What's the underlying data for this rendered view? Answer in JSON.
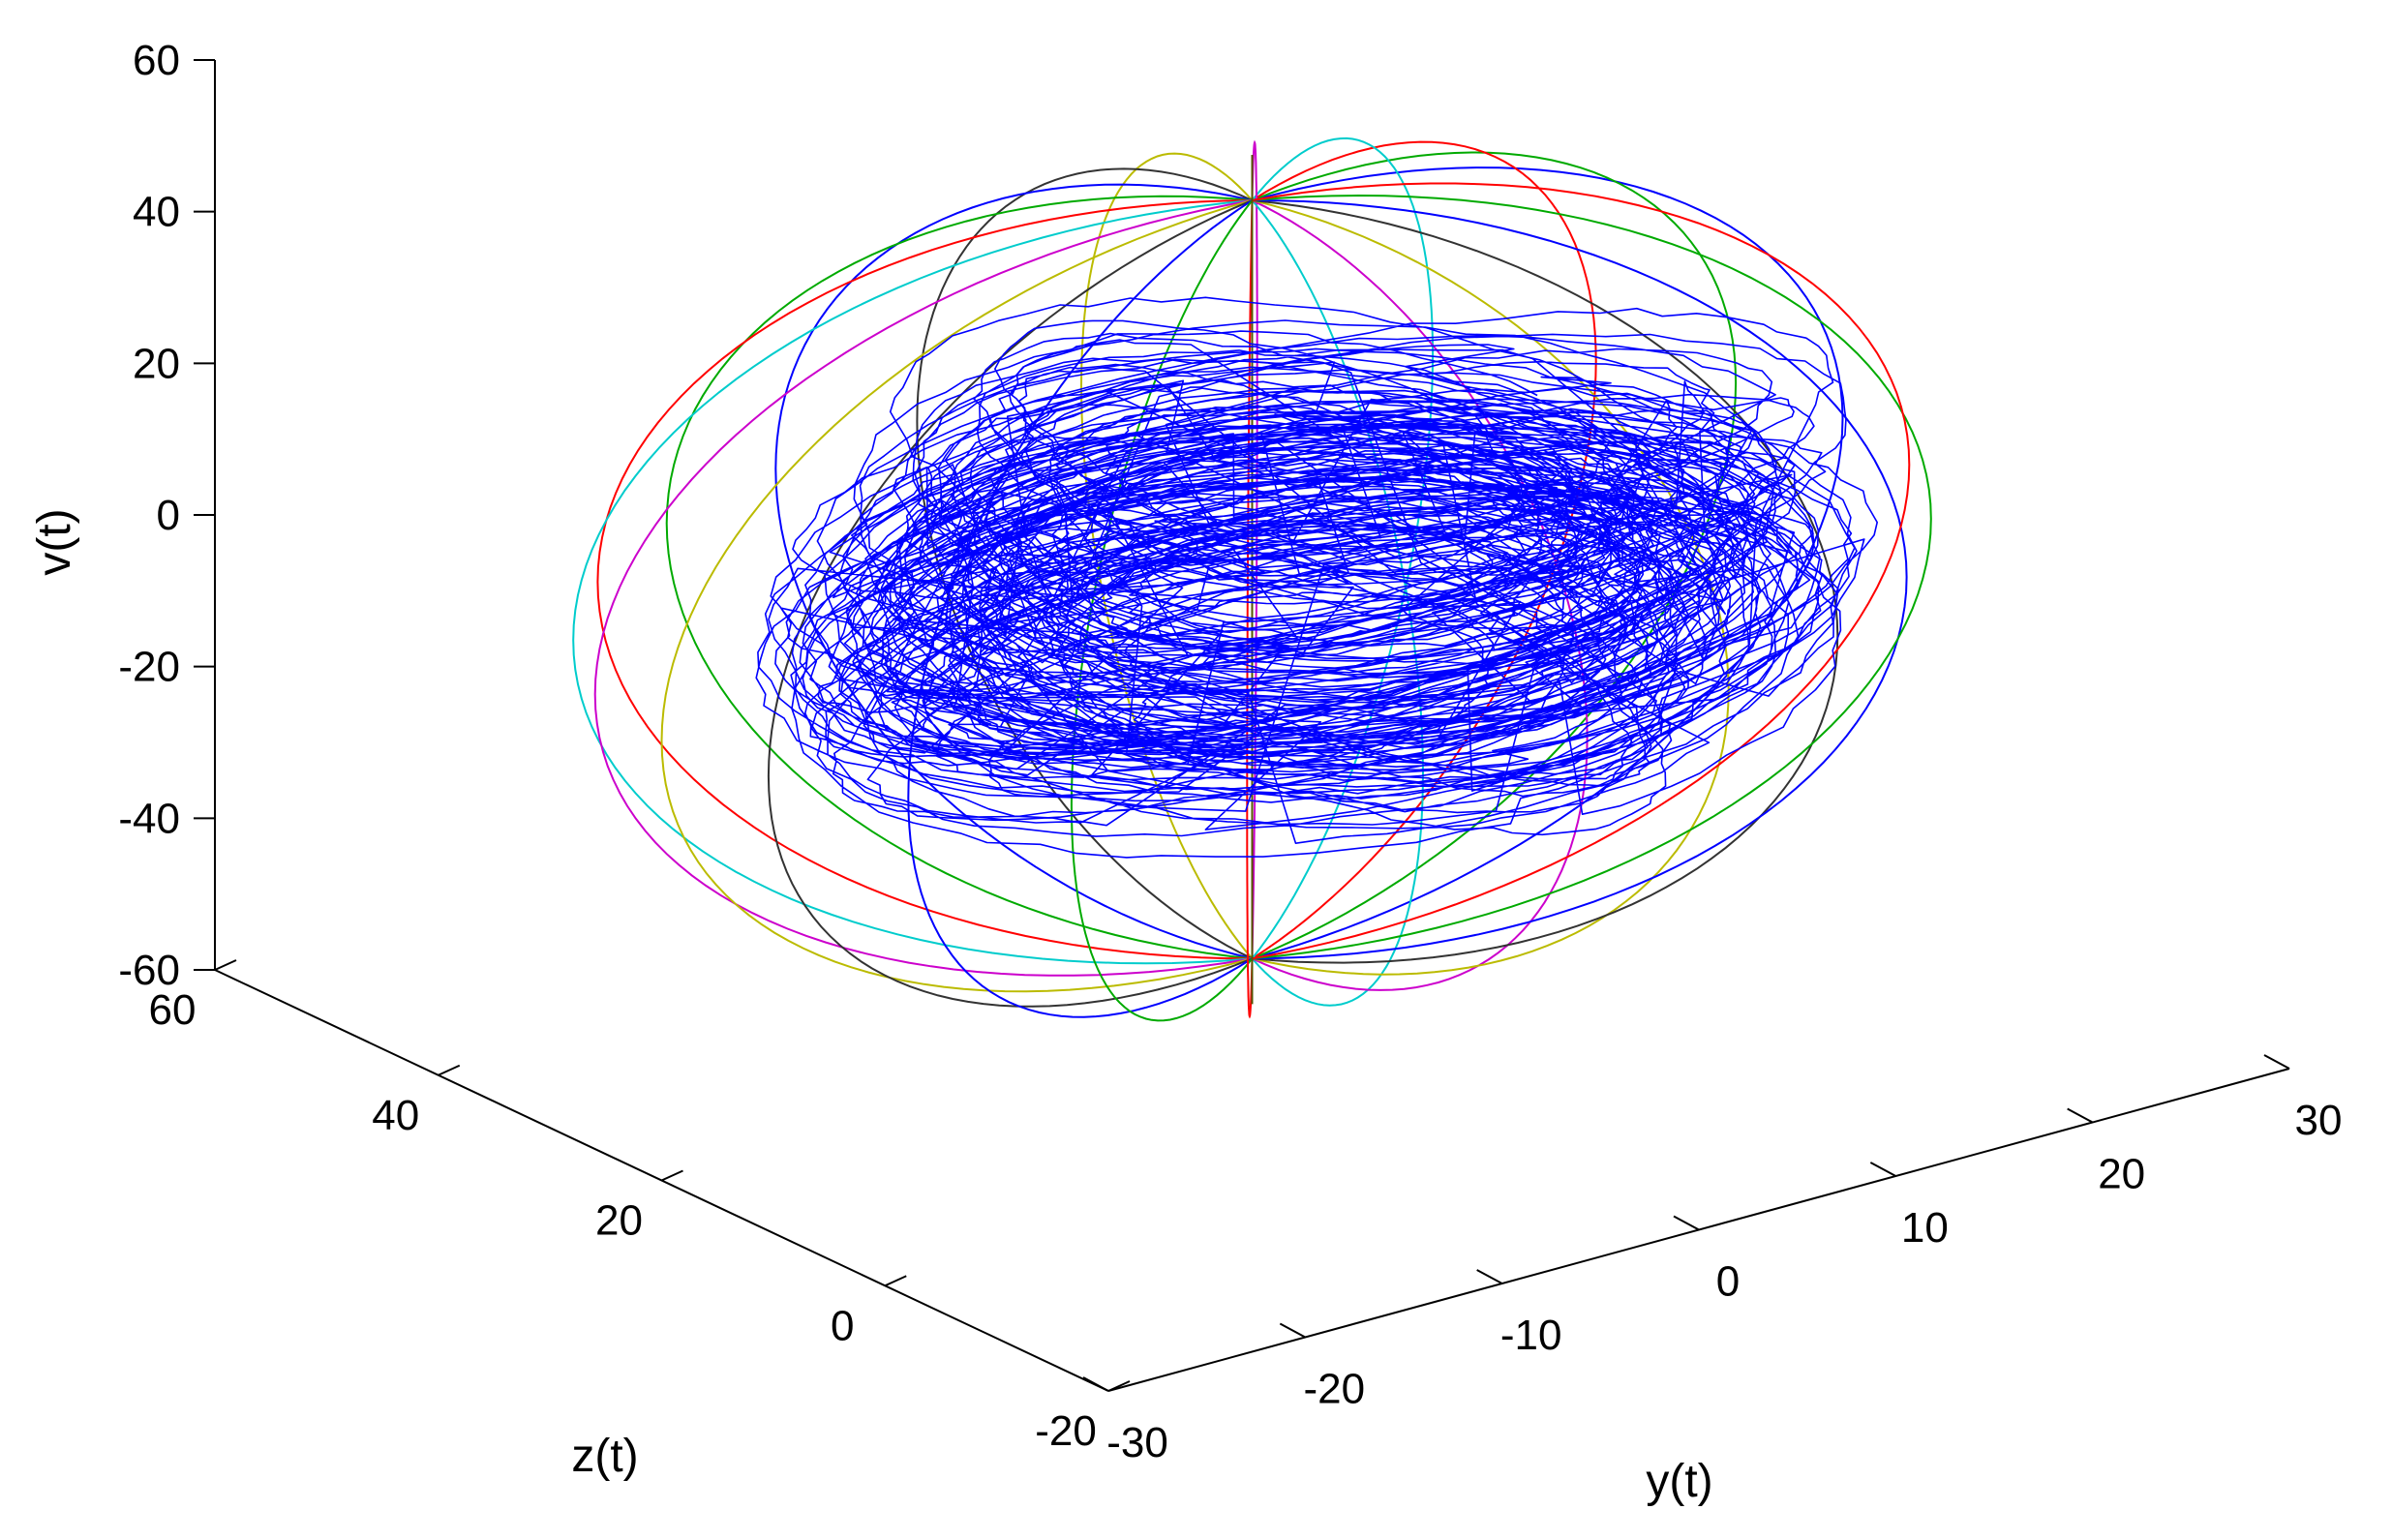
{
  "chart_data": {
    "type": "line",
    "projection": "3d",
    "axes": {
      "v": {
        "label": "v(t)",
        "range": [
          -60,
          60
        ],
        "ticks": [
          -60,
          -40,
          -20,
          0,
          20,
          40,
          60
        ]
      },
      "z": {
        "label": "z(t)",
        "range": [
          -20,
          60
        ],
        "ticks": [
          -20,
          0,
          20,
          40,
          60
        ]
      },
      "y": {
        "label": "y(t)",
        "range": [
          -30,
          30
        ],
        "ticks": [
          -30,
          -20,
          -10,
          0,
          10,
          20,
          30
        ]
      }
    },
    "grid": false,
    "series": [
      {
        "kind": "sphere-meridians",
        "center": {
          "y": 0,
          "z": 20,
          "v": -2
        },
        "radius_y": 30,
        "radius_z": 30,
        "radius_v": 50,
        "colors": [
          "#0000ff",
          "#00aa00",
          "#ff0000",
          "#00cccc",
          "#cc00cc",
          "#bbbb00",
          "#333333"
        ]
      },
      {
        "kind": "trajectory",
        "color": "#0000ff",
        "center": {
          "y": 2,
          "z": 18,
          "v": -2
        },
        "spread": {
          "y": 20,
          "z": 22,
          "v": 14
        }
      }
    ]
  }
}
